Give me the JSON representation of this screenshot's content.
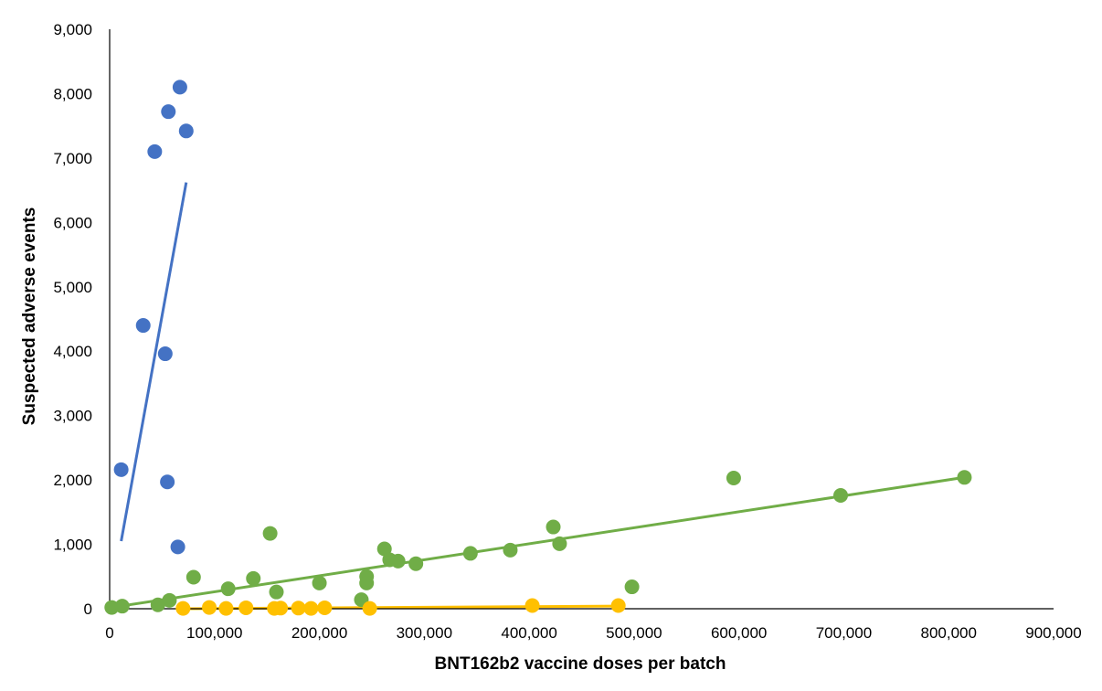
{
  "chart_data": {
    "type": "scatter",
    "title": "",
    "xlabel": "BNT162b2 vaccine doses per batch",
    "ylabel": "Suspected adverse events",
    "xlim": [
      0,
      900000
    ],
    "ylim": [
      0,
      9000
    ],
    "x_ticks": [
      0,
      100000,
      200000,
      300000,
      400000,
      500000,
      600000,
      700000,
      800000,
      900000
    ],
    "y_ticks": [
      0,
      1000,
      2000,
      3000,
      4000,
      5000,
      6000,
      7000,
      8000,
      9000
    ],
    "x_tick_labels": [
      "0",
      "100,000",
      "200,000",
      "300,000",
      "400,000",
      "500,000",
      "600,000",
      "700,000",
      "800,000",
      "900,000"
    ],
    "y_tick_labels": [
      "0",
      "1,000",
      "2,000",
      "3,000",
      "4,000",
      "5,000",
      "6,000",
      "7,000",
      "8,000",
      "9,000"
    ],
    "grid": false,
    "legend": "none",
    "series": [
      {
        "color": "#4472C4",
        "points": [
          [
            11000,
            2160
          ],
          [
            32000,
            4400
          ],
          [
            43000,
            7100
          ],
          [
            53000,
            3960
          ],
          [
            55000,
            1970
          ],
          [
            56000,
            7720
          ],
          [
            65000,
            960
          ],
          [
            67000,
            8100
          ],
          [
            73000,
            7420
          ]
        ],
        "trendline": [
          [
            11000,
            1050
          ],
          [
            73000,
            6620
          ]
        ]
      },
      {
        "color": "#70AD47",
        "points": [
          [
            2000,
            20
          ],
          [
            12000,
            40
          ],
          [
            46000,
            60
          ],
          [
            57000,
            130
          ],
          [
            80000,
            490
          ],
          [
            113000,
            310
          ],
          [
            137000,
            470
          ],
          [
            153000,
            1170
          ],
          [
            159000,
            260
          ],
          [
            200000,
            400
          ],
          [
            240000,
            140
          ],
          [
            245000,
            500
          ],
          [
            245000,
            400
          ],
          [
            262000,
            930
          ],
          [
            267000,
            760
          ],
          [
            275000,
            740
          ],
          [
            292000,
            700
          ],
          [
            344000,
            860
          ],
          [
            382000,
            910
          ],
          [
            423000,
            1270
          ],
          [
            429000,
            1010
          ],
          [
            498000,
            340
          ],
          [
            595000,
            2030
          ],
          [
            697000,
            1760
          ],
          [
            815000,
            2040
          ]
        ],
        "trendline": [
          [
            2000,
            20
          ],
          [
            815000,
            2040
          ]
        ]
      },
      {
        "color": "#FFC000",
        "points": [
          [
            70000,
            5
          ],
          [
            95000,
            20
          ],
          [
            111000,
            5
          ],
          [
            130000,
            15
          ],
          [
            157000,
            5
          ],
          [
            163000,
            10
          ],
          [
            180000,
            10
          ],
          [
            192000,
            5
          ],
          [
            205000,
            15
          ],
          [
            248000,
            5
          ],
          [
            403000,
            50
          ],
          [
            485000,
            50
          ]
        ],
        "trendline": [
          [
            70000,
            0
          ],
          [
            485000,
            40
          ]
        ]
      }
    ]
  }
}
